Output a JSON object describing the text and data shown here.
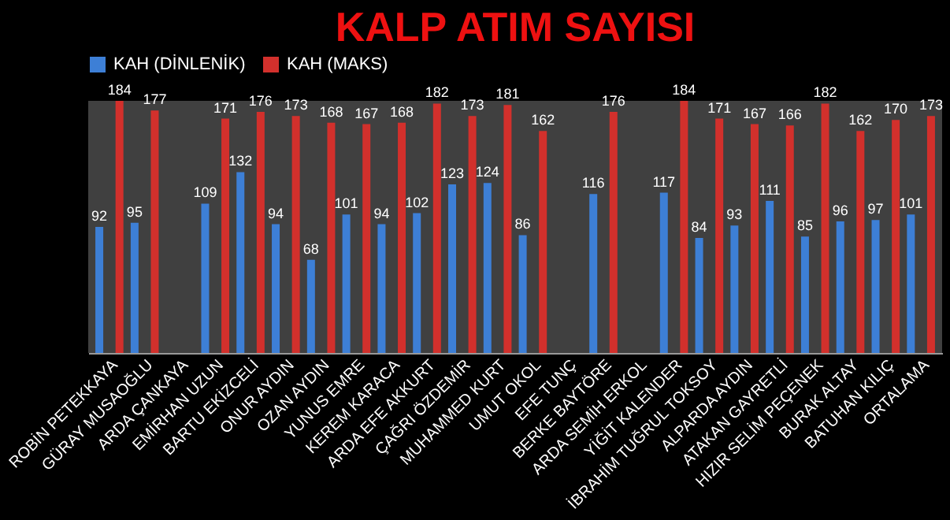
{
  "chart_data": {
    "type": "bar",
    "title": "KALP ATIM SAYISI",
    "categories": [
      "ROBİN PETEKKAYA",
      "GÜRAY MUSAOĞLU",
      "ARDA ÇANKAYA",
      "EMİRHAN UZUN",
      "BARTU EKİZCELİ",
      "ONUR AYDIN",
      "OZAN AYDIN",
      "YUNUS EMRE",
      "KEREM KARACA",
      "ARDA EFE AKKURT",
      "ÇAĞRI ÖZDEMİR",
      "MUHAMMED KURT",
      "UMUT OKOL",
      "EFE TUNÇ",
      "BERKE BAYTÖRE",
      "ARDA SEMİH ERKOL",
      "YİĞİT KALENDER",
      "İBRAHİM TUĞRUL TOKSOY",
      "ALPARDA AYDIN",
      "ATAKAN GAYRETLİ",
      "HIZIR SELİM PEÇENEK",
      "BURAK ALTAY",
      "BATUHAN KILIÇ",
      "ORTALAMA"
    ],
    "series": [
      {
        "name": "KAH (DİNLENİK)",
        "color": "#3d7fd6",
        "values": [
          92,
          95,
          null,
          109,
          132,
          94,
          68,
          101,
          94,
          102,
          123,
          124,
          86,
          null,
          116,
          null,
          117,
          84,
          93,
          111,
          85,
          96,
          97,
          101
        ]
      },
      {
        "name": "KAH (MAKS)",
        "color": "#d2302c",
        "values": [
          184,
          177,
          null,
          171,
          176,
          173,
          168,
          167,
          168,
          182,
          173,
          181,
          162,
          null,
          176,
          null,
          184,
          171,
          167,
          166,
          182,
          162,
          170,
          173
        ]
      }
    ],
    "data_labels": true,
    "legend": "top",
    "grid": false
  }
}
